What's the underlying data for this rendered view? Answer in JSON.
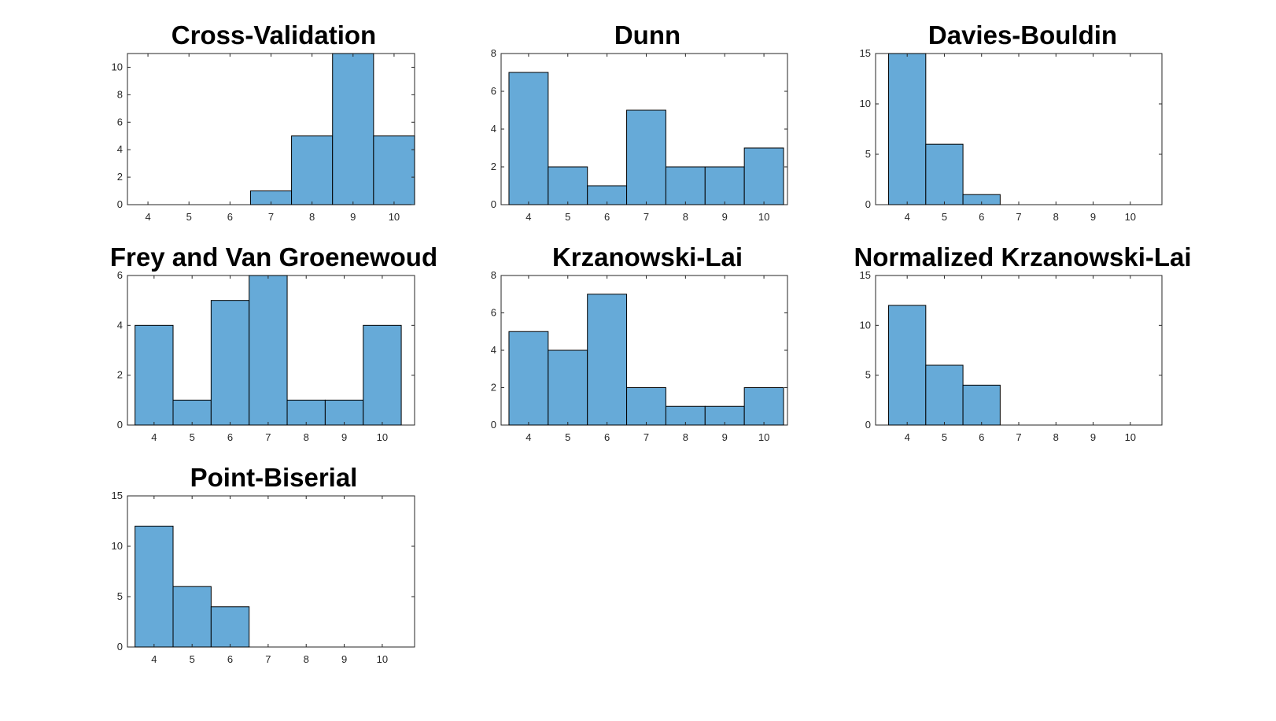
{
  "figure": {
    "background": "#ffffff",
    "bar_color": "#66aad8",
    "edge_color": "#000000"
  },
  "chart_data": [
    {
      "type": "bar",
      "title": "Cross-Validation",
      "categories": [
        4,
        5,
        6,
        7,
        8,
        9,
        10
      ],
      "values": [
        0,
        0,
        0,
        1,
        5,
        11,
        5
      ],
      "xticks": [
        4,
        5,
        6,
        7,
        8,
        9,
        10
      ],
      "yticks": [
        0,
        2,
        4,
        6,
        8,
        10
      ],
      "xlim": [
        3.5,
        10.5
      ],
      "ylim": [
        0,
        11
      ],
      "xlabel": "",
      "ylabel": "",
      "grid": false
    },
    {
      "type": "bar",
      "title": "Dunn",
      "categories": [
        4,
        5,
        6,
        7,
        8,
        9,
        10
      ],
      "values": [
        7,
        2,
        1,
        5,
        2,
        2,
        3
      ],
      "xticks": [
        4,
        5,
        6,
        7,
        8,
        9,
        10
      ],
      "yticks": [
        0,
        2,
        4,
        6,
        8
      ],
      "xlim": [
        3.3,
        10.6
      ],
      "ylim": [
        0,
        8
      ],
      "xlabel": "",
      "ylabel": "",
      "grid": false
    },
    {
      "type": "bar",
      "title": "Davies-Bouldin",
      "categories": [
        4,
        5,
        6,
        7,
        8,
        9,
        10
      ],
      "values": [
        15,
        6,
        1,
        0,
        0,
        0,
        0
      ],
      "xticks": [
        4,
        5,
        6,
        7,
        8,
        9,
        10
      ],
      "yticks": [
        0,
        5,
        10,
        15
      ],
      "xlim": [
        3.15,
        10.85
      ],
      "ylim": [
        0,
        15
      ],
      "xlabel": "",
      "ylabel": "",
      "grid": false
    },
    {
      "type": "bar",
      "title": "Frey and Van Groenewoud",
      "categories": [
        4,
        5,
        6,
        7,
        8,
        9,
        10
      ],
      "values": [
        4,
        1,
        5,
        6,
        1,
        1,
        4
      ],
      "xticks": [
        4,
        5,
        6,
        7,
        8,
        9,
        10
      ],
      "yticks": [
        0,
        2,
        4,
        6
      ],
      "xlim": [
        3.3,
        10.85
      ],
      "ylim": [
        0,
        6
      ],
      "xlabel": "",
      "ylabel": "",
      "grid": false
    },
    {
      "type": "bar",
      "title": "Krzanowski-Lai",
      "categories": [
        4,
        5,
        6,
        7,
        8,
        9,
        10
      ],
      "values": [
        5,
        4,
        7,
        2,
        1,
        1,
        2
      ],
      "xticks": [
        4,
        5,
        6,
        7,
        8,
        9,
        10
      ],
      "yticks": [
        0,
        2,
        4,
        6,
        8
      ],
      "xlim": [
        3.3,
        10.6
      ],
      "ylim": [
        0,
        8
      ],
      "xlabel": "",
      "ylabel": "",
      "grid": false
    },
    {
      "type": "bar",
      "title": "Normalized Krzanowski-Lai",
      "categories": [
        4,
        5,
        6,
        7,
        8,
        9,
        10
      ],
      "values": [
        12,
        6,
        4,
        0,
        0,
        0,
        0
      ],
      "xticks": [
        4,
        5,
        6,
        7,
        8,
        9,
        10
      ],
      "yticks": [
        0,
        5,
        10,
        15
      ],
      "xlim": [
        3.15,
        10.85
      ],
      "ylim": [
        0,
        15
      ],
      "xlabel": "",
      "ylabel": "",
      "grid": false
    },
    {
      "type": "bar",
      "title": "Point-Biserial",
      "categories": [
        4,
        5,
        6,
        7,
        8,
        9,
        10
      ],
      "values": [
        12,
        6,
        4,
        0,
        0,
        0,
        0
      ],
      "xticks": [
        4,
        5,
        6,
        7,
        8,
        9,
        10
      ],
      "yticks": [
        0,
        5,
        10,
        15
      ],
      "xlim": [
        3.3,
        10.85
      ],
      "ylim": [
        0,
        15
      ],
      "xlabel": "",
      "ylabel": "",
      "grid": false
    }
  ]
}
